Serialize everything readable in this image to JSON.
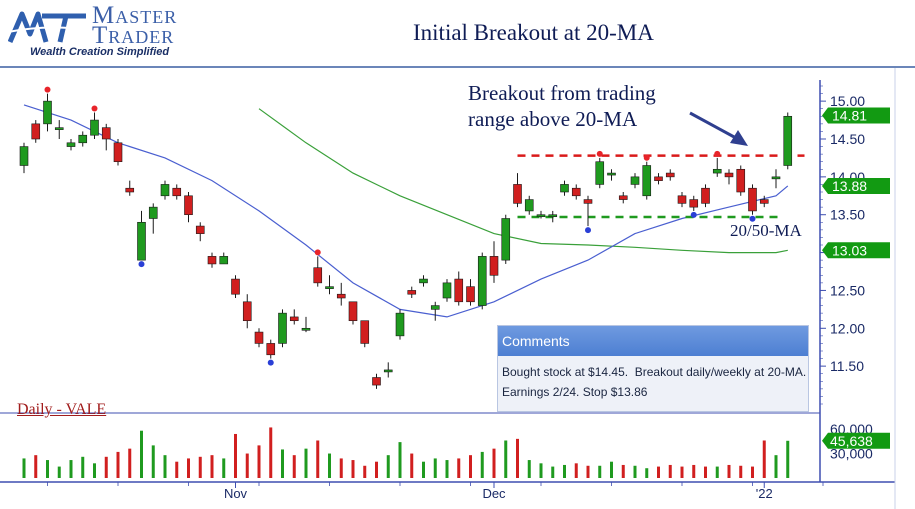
{
  "header": {
    "brand_line1": "Master",
    "brand_line2": "Trader",
    "brand_tagline": "Wealth Creation Simplified"
  },
  "annotations": {
    "breakout_note": "Breakout from trading\nrange above 20-MA",
    "ma_label": "20/50-MA",
    "daily_label": "Daily - VALE"
  },
  "comments": {
    "header": "Comments",
    "body": "Bought stock at $14.45.  Breakout daily/weekly at 20-MA.\nEarnings 2/24. Stop $13.86"
  },
  "colors": {
    "up": "#1f9a1f",
    "down": "#d11f1f",
    "ma20": "#4a5fd0",
    "ma50": "#3aa03a",
    "guide": "#d91a1a",
    "support": "#1f9a1f",
    "arrow": "#2f3f8f",
    "price_tag": "#129a12",
    "axis": "#3f4fb0"
  },
  "chart_data": {
    "type": "candlestick",
    "title": "Initial Breakout at 20-MA",
    "ylim": [
      11.0,
      15.2
    ],
    "yticks": [
      "15.00",
      "14.50",
      "14.00",
      "13.50",
      "13.00",
      "12.50",
      "12.00",
      "11.50"
    ],
    "last_price_tags": [
      "14.81",
      "13.88",
      "13.03"
    ],
    "volume_tags": [
      "60,000",
      "45,638",
      "30,000"
    ],
    "x_labels": [
      {
        "index": 18,
        "label": "Nov"
      },
      {
        "index": 40,
        "label": "Dec"
      },
      {
        "index": 63,
        "label": "'22"
      }
    ],
    "candles": [
      {
        "o": 14.15,
        "h": 14.45,
        "l": 14.05,
        "c": 14.4
      },
      {
        "o": 14.7,
        "h": 14.75,
        "l": 14.45,
        "c": 14.5
      },
      {
        "o": 14.7,
        "h": 15.1,
        "l": 14.6,
        "c": 15.0
      },
      {
        "o": 14.65,
        "h": 14.75,
        "l": 14.5,
        "c": 14.65
      },
      {
        "o": 14.4,
        "h": 14.5,
        "l": 14.35,
        "c": 14.45
      },
      {
        "o": 14.45,
        "h": 14.6,
        "l": 14.4,
        "c": 14.55
      },
      {
        "o": 14.55,
        "h": 14.85,
        "l": 14.5,
        "c": 14.75
      },
      {
        "o": 14.65,
        "h": 14.7,
        "l": 14.35,
        "c": 14.5
      },
      {
        "o": 14.45,
        "h": 14.5,
        "l": 14.15,
        "c": 14.2
      },
      {
        "o": 13.85,
        "h": 13.95,
        "l": 13.75,
        "c": 13.8
      },
      {
        "o": 12.9,
        "h": 13.55,
        "l": 12.9,
        "c": 13.4
      },
      {
        "o": 13.45,
        "h": 13.65,
        "l": 13.25,
        "c": 13.6
      },
      {
        "o": 13.75,
        "h": 13.95,
        "l": 13.7,
        "c": 13.9
      },
      {
        "o": 13.85,
        "h": 13.9,
        "l": 13.7,
        "c": 13.75
      },
      {
        "o": 13.75,
        "h": 13.8,
        "l": 13.4,
        "c": 13.5
      },
      {
        "o": 13.35,
        "h": 13.4,
        "l": 13.15,
        "c": 13.25
      },
      {
        "o": 12.95,
        "h": 13.0,
        "l": 12.8,
        "c": 12.85
      },
      {
        "o": 12.85,
        "h": 13.0,
        "l": 12.85,
        "c": 12.95
      },
      {
        "o": 12.65,
        "h": 12.7,
        "l": 12.4,
        "c": 12.45
      },
      {
        "o": 12.35,
        "h": 12.45,
        "l": 12.0,
        "c": 12.1
      },
      {
        "o": 11.95,
        "h": 12.0,
        "l": 11.75,
        "c": 11.8
      },
      {
        "o": 11.8,
        "h": 11.85,
        "l": 11.6,
        "c": 11.65
      },
      {
        "o": 11.8,
        "h": 12.25,
        "l": 11.75,
        "c": 12.2
      },
      {
        "o": 12.15,
        "h": 12.25,
        "l": 12.05,
        "c": 12.1
      },
      {
        "o": 12.0,
        "h": 12.15,
        "l": 11.95,
        "c": 12.0
      },
      {
        "o": 12.8,
        "h": 12.95,
        "l": 12.55,
        "c": 12.6
      },
      {
        "o": 12.55,
        "h": 12.7,
        "l": 12.45,
        "c": 12.55
      },
      {
        "o": 12.45,
        "h": 12.6,
        "l": 12.3,
        "c": 12.4
      },
      {
        "o": 12.35,
        "h": 12.35,
        "l": 12.05,
        "c": 12.1
      },
      {
        "o": 12.1,
        "h": 12.1,
        "l": 11.75,
        "c": 11.8
      },
      {
        "o": 11.35,
        "h": 11.4,
        "l": 11.2,
        "c": 11.25
      },
      {
        "o": 11.45,
        "h": 11.55,
        "l": 11.35,
        "c": 11.45
      },
      {
        "o": 11.9,
        "h": 12.25,
        "l": 11.85,
        "c": 12.2
      },
      {
        "o": 12.5,
        "h": 12.55,
        "l": 12.4,
        "c": 12.45
      },
      {
        "o": 12.6,
        "h": 12.7,
        "l": 12.55,
        "c": 12.65
      },
      {
        "o": 12.25,
        "h": 12.35,
        "l": 12.1,
        "c": 12.3
      },
      {
        "o": 12.4,
        "h": 12.65,
        "l": 12.35,
        "c": 12.6
      },
      {
        "o": 12.65,
        "h": 12.75,
        "l": 12.3,
        "c": 12.35
      },
      {
        "o": 12.55,
        "h": 12.65,
        "l": 12.3,
        "c": 12.35
      },
      {
        "o": 12.3,
        "h": 13.0,
        "l": 12.25,
        "c": 12.95
      },
      {
        "o": 12.95,
        "h": 13.15,
        "l": 12.6,
        "c": 12.7
      },
      {
        "o": 12.9,
        "h": 13.5,
        "l": 12.85,
        "c": 13.45
      },
      {
        "o": 13.9,
        "h": 14.05,
        "l": 13.6,
        "c": 13.65
      },
      {
        "o": 13.55,
        "h": 13.75,
        "l": 13.5,
        "c": 13.7
      },
      {
        "o": 13.5,
        "h": 13.55,
        "l": 13.45,
        "c": 13.5
      },
      {
        "o": 13.48,
        "h": 13.55,
        "l": 13.4,
        "c": 13.5
      },
      {
        "o": 13.8,
        "h": 13.95,
        "l": 13.75,
        "c": 13.9
      },
      {
        "o": 13.85,
        "h": 13.9,
        "l": 13.7,
        "c": 13.75
      },
      {
        "o": 13.7,
        "h": 13.75,
        "l": 13.35,
        "c": 13.65
      },
      {
        "o": 13.9,
        "h": 14.25,
        "l": 13.85,
        "c": 14.2
      },
      {
        "o": 14.05,
        "h": 14.1,
        "l": 13.95,
        "c": 14.05
      },
      {
        "o": 13.75,
        "h": 13.8,
        "l": 13.65,
        "c": 13.7
      },
      {
        "o": 13.9,
        "h": 14.05,
        "l": 13.85,
        "c": 14.0
      },
      {
        "o": 13.75,
        "h": 14.2,
        "l": 13.7,
        "c": 14.15
      },
      {
        "o": 14.0,
        "h": 14.05,
        "l": 13.9,
        "c": 13.95
      },
      {
        "o": 14.05,
        "h": 14.1,
        "l": 13.95,
        "c": 14.0
      },
      {
        "o": 13.75,
        "h": 13.8,
        "l": 13.6,
        "c": 13.65
      },
      {
        "o": 13.7,
        "h": 13.75,
        "l": 13.55,
        "c": 13.6
      },
      {
        "o": 13.85,
        "h": 13.9,
        "l": 13.6,
        "c": 13.65
      },
      {
        "o": 14.05,
        "h": 14.25,
        "l": 14.0,
        "c": 14.1
      },
      {
        "o": 14.05,
        "h": 14.1,
        "l": 13.9,
        "c": 14.0
      },
      {
        "o": 14.1,
        "h": 14.15,
        "l": 13.75,
        "c": 13.8
      },
      {
        "o": 13.85,
        "h": 13.9,
        "l": 13.5,
        "c": 13.55
      },
      {
        "o": 13.7,
        "h": 13.75,
        "l": 13.6,
        "c": 13.65
      },
      {
        "o": 14.0,
        "h": 14.1,
        "l": 13.85,
        "c": 14.0
      },
      {
        "o": 14.15,
        "h": 14.85,
        "l": 14.1,
        "c": 14.8
      }
    ],
    "ma20": [
      [
        0,
        14.95
      ],
      [
        4,
        14.75
      ],
      [
        8,
        14.45
      ],
      [
        12,
        14.25
      ],
      [
        16,
        13.95
      ],
      [
        20,
        13.55
      ],
      [
        24,
        13.1
      ],
      [
        28,
        12.6
      ],
      [
        32,
        12.25
      ],
      [
        36,
        12.15
      ],
      [
        40,
        12.35
      ],
      [
        44,
        12.65
      ],
      [
        48,
        12.9
      ],
      [
        52,
        13.25
      ],
      [
        56,
        13.45
      ],
      [
        60,
        13.6
      ],
      [
        64,
        13.75
      ],
      [
        65,
        13.88
      ]
    ],
    "ma50": [
      [
        20,
        14.9
      ],
      [
        24,
        14.45
      ],
      [
        28,
        14.05
      ],
      [
        32,
        13.75
      ],
      [
        36,
        13.5
      ],
      [
        40,
        13.25
      ],
      [
        44,
        13.12
      ],
      [
        48,
        13.1
      ],
      [
        52,
        13.07
      ],
      [
        56,
        13.03
      ],
      [
        60,
        13.0
      ],
      [
        64,
        13.0
      ],
      [
        65,
        13.03
      ]
    ],
    "breakout_level": 14.28,
    "support_level": 13.47,
    "breakout_line_range": [
      42,
      66
    ],
    "support_line_range": [
      42,
      64
    ],
    "swing_highs": [
      2,
      6,
      25,
      49,
      53,
      59
    ],
    "swing_lows": [
      10,
      21,
      48,
      57,
      62
    ],
    "volume_ylim": [
      0,
      65000
    ],
    "volume": [
      24000,
      28000,
      22000,
      14000,
      22000,
      26000,
      18000,
      26000,
      32000,
      36000,
      58000,
      40000,
      28000,
      20000,
      24000,
      26000,
      28000,
      24000,
      54000,
      30000,
      40000,
      62000,
      35000,
      28000,
      36000,
      46000,
      30000,
      24000,
      22000,
      15000,
      20000,
      28000,
      44000,
      30000,
      20000,
      24000,
      22000,
      24000,
      28000,
      32000,
      36000,
      46000,
      48000,
      22000,
      18000,
      14000,
      16000,
      18000,
      15000,
      15000,
      20000,
      16000,
      15000,
      12000,
      14000,
      16000,
      14000,
      16000,
      14000,
      14000,
      16000,
      15000,
      14000,
      46000,
      28000,
      45638
    ]
  }
}
